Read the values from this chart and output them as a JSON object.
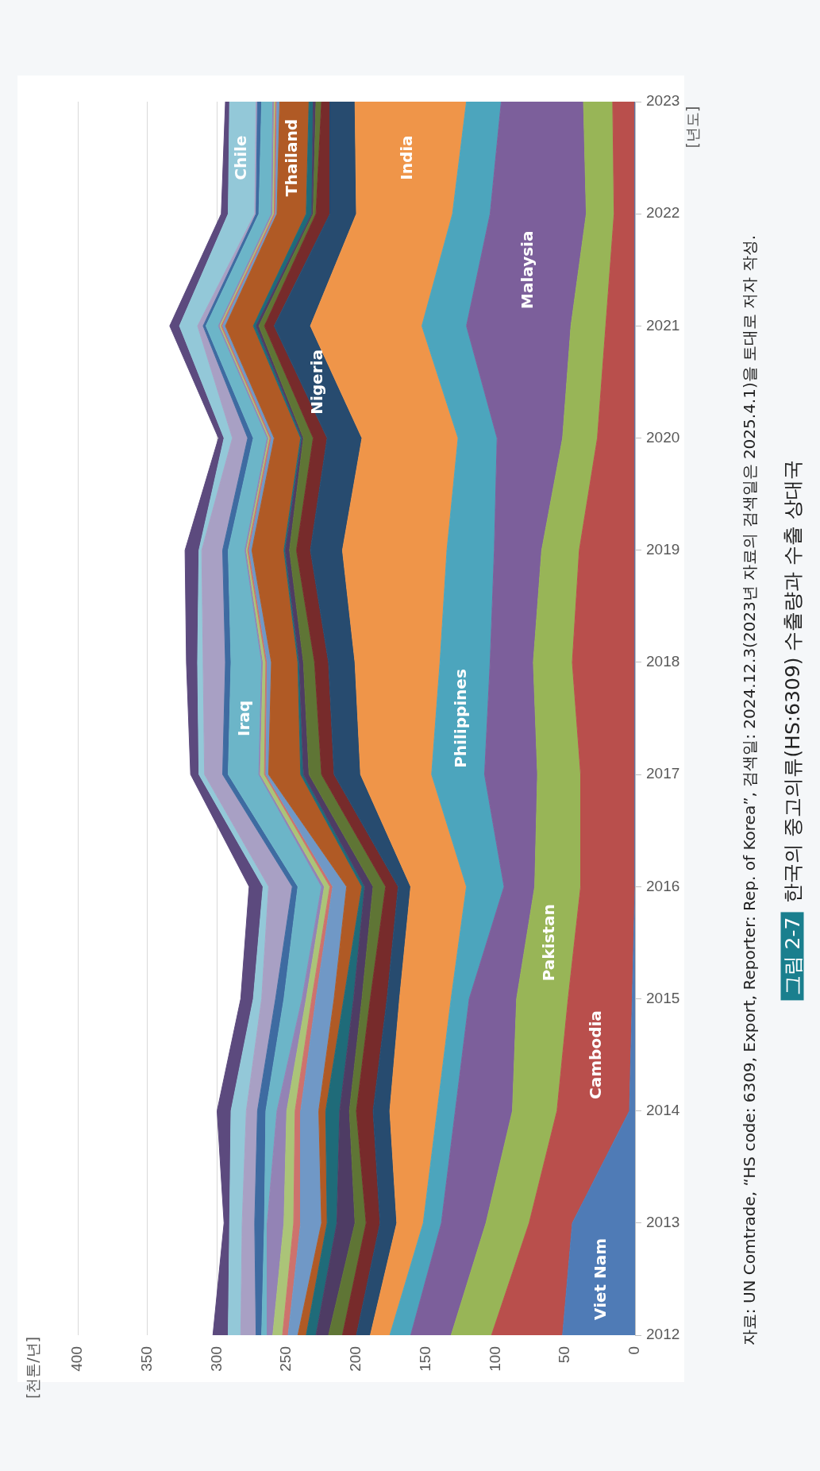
{
  "chart_data": {
    "type": "area",
    "stacked": true,
    "orientation": "horizontal",
    "legend": false,
    "grid": "x",
    "marker": "none",
    "title": "한국의 중고의류(HS:6309) 수출량과 수출 상대국",
    "ylabel": "[천톤/년]",
    "annotations": [
      "자료: UN Comtrade, “HS code: 6309, Export, Reporter: Rep. of Korea”, 검색일: 2024.12.3(2023년 자료의 검색일은 2025.4.1)을 토대로 저자 작성.",
      "그림 2-7",
      "[년도]"
    ],
    "categories": [
      "2023",
      "2022",
      "2021",
      "2020",
      "2019",
      "2018",
      "2017",
      "2016",
      "2015",
      "2014",
      "2013",
      "2012"
    ],
    "xlim": [
      400,
      0
    ],
    "xticks": [
      400,
      350,
      300,
      250,
      200,
      150,
      100,
      50,
      0
    ],
    "series": [
      {
        "name": "Viet Nam",
        "color": "#4f7bb6",
        "values": [
          0,
          0,
          0,
          0,
          0,
          0,
          0,
          0,
          2,
          4,
          45,
          52
        ]
      },
      {
        "name": "Cambodia",
        "color": "#b94f4c",
        "values": [
          16,
          15,
          21,
          27,
          40,
          45,
          39,
          39,
          46,
          52,
          31,
          51
        ]
      },
      {
        "name": "Pakistan",
        "color": "#98b557",
        "values": [
          21,
          20,
          25,
          25,
          27,
          28,
          31,
          33,
          37,
          32,
          31,
          29
        ]
      },
      {
        "name": "Malaysia",
        "color": "#7c5f9b",
        "values": [
          59,
          69,
          75,
          47,
          34,
          31,
          38,
          22,
          34,
          41,
          32,
          29
        ]
      },
      {
        "name": "Philippines",
        "color": "#4ca5bd",
        "values": [
          25,
          27,
          32,
          28,
          34,
          36,
          38,
          27,
          13,
          13,
          13,
          15
        ]
      },
      {
        "name": "India",
        "color": "#ef9549",
        "values": [
          80,
          69,
          80,
          69,
          75,
          61,
          51,
          40,
          37,
          34,
          19,
          14
        ]
      },
      {
        "name": "Nigeria",
        "color": "#274b6f",
        "values": [
          18,
          19,
          26,
          25,
          23,
          19,
          19,
          9,
          9,
          12,
          12,
          10
        ]
      },
      {
        "color": "#772b2b",
        "values": [
          6,
          10,
          7,
          10,
          10,
          10,
          9,
          9,
          12,
          12,
          10,
          10
        ]
      },
      {
        "color": "#5f7535",
        "values": [
          4,
          2,
          4,
          7,
          5,
          8,
          9,
          9,
          6,
          5,
          8,
          10
        ]
      },
      {
        "color": "#4e3c64",
        "values": [
          2,
          1,
          2,
          1,
          3,
          3,
          4,
          6,
          6,
          7,
          13,
          9
        ]
      },
      {
        "color": "#1f6b79",
        "values": [
          3,
          4,
          2,
          1,
          1,
          1,
          2,
          2,
          7,
          10,
          7,
          7
        ]
      },
      {
        "name": "Thailand",
        "color": "#b05a25",
        "values": [
          21,
          21,
          20,
          19,
          23,
          19,
          23,
          11,
          7,
          5,
          4,
          6
        ]
      },
      {
        "color": "#7098c6",
        "values": [
          2,
          1,
          2,
          2,
          2,
          3,
          2,
          10,
          13,
          13,
          15,
          7
        ]
      },
      {
        "color": "#cd726d",
        "values": [
          1,
          1,
          1,
          1,
          1,
          1,
          1,
          2,
          3,
          4,
          5,
          4
        ]
      },
      {
        "color": "#abc478",
        "values": [
          1,
          1,
          1,
          1,
          1,
          2,
          3,
          4,
          4,
          6,
          7,
          7
        ]
      },
      {
        "color": "#9383b5",
        "values": [
          1,
          1,
          1,
          1,
          1,
          1,
          1,
          2,
          3,
          7,
          12,
          4
        ]
      },
      {
        "name": "Iraq",
        "color": "#6cb5c8",
        "values": [
          8,
          9,
          9,
          10,
          12,
          22,
          22,
          17,
          13,
          8,
          2,
          4
        ]
      },
      {
        "color": "#3e6ba1",
        "values": [
          3,
          2,
          2,
          4,
          4,
          4,
          4,
          4,
          6,
          6,
          7,
          4
        ]
      },
      {
        "color": "#a8a0c4",
        "values": [
          1,
          1,
          4,
          11,
          15,
          16,
          13,
          17,
          10,
          8,
          9,
          11
        ]
      },
      {
        "name": "Chile",
        "color": "#93c8d8",
        "values": [
          19,
          19,
          13,
          6,
          2,
          4,
          4,
          4,
          6,
          11,
          9,
          9
        ]
      },
      {
        "color": "#5c4a7e",
        "values": [
          3,
          5,
          7,
          4,
          10,
          8,
          6,
          10,
          9,
          10,
          4,
          11
        ]
      }
    ]
  }
}
